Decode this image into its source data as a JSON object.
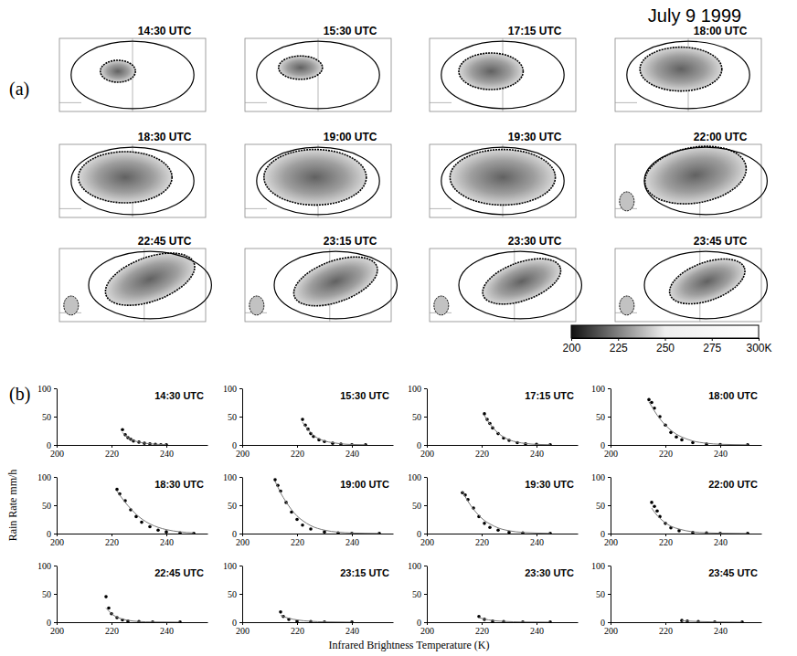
{
  "title": "July 9 1999",
  "panel_a": {
    "label": "(a)",
    "times": [
      "14:30 UTC",
      "15:30 UTC",
      "17:15 UTC",
      "18:00 UTC",
      "18:30 UTC",
      "19:00 UTC",
      "19:30 UTC",
      "22:00 UTC",
      "22:45 UTC",
      "23:15 UTC",
      "23:30 UTC",
      "23:45 UTC"
    ],
    "colorbar": {
      "range": [
        200,
        300
      ],
      "ticks": [
        200,
        225,
        250,
        275,
        {
          "value": 300,
          "label": "300K"
        }
      ]
    }
  },
  "panel_b": {
    "label": "(b)",
    "xlabel": "Infrared Brightness Temperature (K)",
    "ylabel": "Rain Rate mm/h"
  },
  "chart_data": [
    {
      "type": "scatter",
      "title": "14:30 UTC",
      "x": [
        224,
        225,
        226,
        227,
        228,
        230,
        232,
        234,
        236,
        238,
        240
      ],
      "series": [
        {
          "type": "scatter",
          "marker": "dot",
          "color": "#000000",
          "values": [
            27,
            18,
            13,
            10,
            7,
            5,
            3,
            2,
            1,
            0.5,
            0.3
          ]
        },
        {
          "type": "line",
          "line_style": "solid",
          "color": "#777777",
          "values": [
            22,
            17,
            13,
            10,
            8,
            5,
            3.2,
            2,
            1.3,
            0.8,
            0.5
          ]
        }
      ],
      "xlim": [
        200,
        255
      ],
      "ylim": [
        0,
        100
      ],
      "xticks": [
        200,
        220,
        240
      ],
      "yticks": [
        0,
        50,
        100
      ]
    },
    {
      "type": "scatter",
      "title": "15:30 UTC",
      "x": [
        222,
        223,
        224,
        225,
        226,
        228,
        230,
        233,
        236,
        240,
        245
      ],
      "series": [
        {
          "type": "scatter",
          "marker": "dot",
          "color": "#000000",
          "values": [
            45,
            35,
            28,
            20,
            15,
            9,
            6,
            3,
            1.5,
            0.5,
            0.2
          ]
        },
        {
          "type": "line",
          "line_style": "solid",
          "color": "#777777",
          "values": [
            40,
            33,
            27,
            22,
            17,
            11,
            7,
            4,
            2,
            0.8,
            0.3
          ]
        }
      ],
      "xlim": [
        200,
        255
      ],
      "ylim": [
        0,
        100
      ],
      "xticks": [
        200,
        220,
        240
      ],
      "yticks": [
        0,
        50,
        100
      ]
    },
    {
      "type": "scatter",
      "title": "17:15 UTC",
      "x": [
        221,
        222,
        223,
        224,
        226,
        228,
        230,
        233,
        236,
        240,
        245
      ],
      "series": [
        {
          "type": "scatter",
          "marker": "dot",
          "color": "#000000",
          "values": [
            55,
            45,
            38,
            30,
            20,
            12,
            8,
            4,
            2,
            1,
            0.3
          ]
        },
        {
          "type": "line",
          "line_style": "solid",
          "color": "#777777",
          "values": [
            52,
            44,
            37,
            31,
            21,
            14,
            9,
            5,
            2.5,
            1,
            0.4
          ]
        }
      ],
      "xlim": [
        200,
        255
      ],
      "ylim": [
        0,
        100
      ],
      "xticks": [
        200,
        220,
        240
      ],
      "yticks": [
        0,
        50,
        100
      ]
    },
    {
      "type": "scatter",
      "title": "18:00 UTC",
      "x": [
        214,
        215,
        216,
        218,
        220,
        222,
        224,
        226,
        230,
        235,
        240,
        250
      ],
      "series": [
        {
          "type": "scatter",
          "marker": "dot",
          "color": "#000000",
          "values": [
            80,
            75,
            65,
            50,
            35,
            22,
            14,
            9,
            4,
            1.5,
            0.6,
            0.2
          ]
        },
        {
          "type": "line",
          "line_style": "solid",
          "color": "#777777",
          "values": [
            76,
            68,
            60,
            46,
            35,
            26,
            19,
            14,
            7,
            3,
            1.2,
            0.3
          ]
        }
      ],
      "xlim": [
        200,
        255
      ],
      "ylim": [
        0,
        100
      ],
      "xticks": [
        200,
        220,
        240
      ],
      "yticks": [
        0,
        50,
        100
      ]
    },
    {
      "type": "scatter",
      "title": "18:30 UTC",
      "x": [
        222,
        223,
        225,
        227,
        229,
        231,
        234,
        237,
        240,
        245,
        250
      ],
      "series": [
        {
          "type": "scatter",
          "marker": "dot",
          "color": "#000000",
          "values": [
            78,
            70,
            58,
            42,
            30,
            20,
            12,
            6,
            3,
            1,
            0.3
          ]
        },
        {
          "type": "line",
          "line_style": "solid",
          "color": "#777777",
          "values": [
            75,
            68,
            55,
            44,
            34,
            26,
            17,
            11,
            7,
            3,
            1.2
          ]
        }
      ],
      "xlim": [
        200,
        255
      ],
      "ylim": [
        0,
        100
      ],
      "xticks": [
        200,
        220,
        240
      ],
      "yticks": [
        0,
        50,
        100
      ]
    },
    {
      "type": "scatter",
      "title": "19:00 UTC",
      "x": [
        212,
        213,
        214,
        216,
        218,
        220,
        222,
        225,
        230,
        235,
        240,
        250
      ],
      "series": [
        {
          "type": "scatter",
          "marker": "dot",
          "color": "#000000",
          "values": [
            95,
            85,
            75,
            55,
            38,
            25,
            15,
            8,
            3,
            1,
            0.5,
            0.2
          ]
        },
        {
          "type": "line",
          "line_style": "solid",
          "color": "#777777",
          "values": [
            92,
            82,
            72,
            56,
            42,
            31,
            23,
            14,
            6,
            2.5,
            1,
            0.2
          ]
        }
      ],
      "xlim": [
        200,
        255
      ],
      "ylim": [
        0,
        100
      ],
      "xticks": [
        200,
        220,
        240
      ],
      "yticks": [
        0,
        50,
        100
      ]
    },
    {
      "type": "scatter",
      "title": "19:30 UTC",
      "x": [
        213,
        214,
        215,
        217,
        219,
        221,
        223,
        226,
        230,
        235,
        245
      ],
      "series": [
        {
          "type": "scatter",
          "marker": "dot",
          "color": "#000000",
          "values": [
            72,
            68,
            60,
            45,
            30,
            18,
            11,
            6,
            2.5,
            1,
            0.3
          ]
        },
        {
          "type": "line",
          "line_style": "solid",
          "color": "#777777",
          "values": [
            74,
            65,
            57,
            43,
            32,
            23,
            17,
            10,
            5,
            2,
            0.4
          ]
        }
      ],
      "xlim": [
        200,
        255
      ],
      "ylim": [
        0,
        100
      ],
      "xticks": [
        200,
        220,
        240
      ],
      "yticks": [
        0,
        50,
        100
      ]
    },
    {
      "type": "scatter",
      "title": "22:00 UTC",
      "x": [
        215,
        216,
        217,
        218,
        220,
        222,
        225,
        230,
        235,
        240,
        250
      ],
      "series": [
        {
          "type": "scatter",
          "marker": "dot",
          "color": "#000000",
          "values": [
            55,
            48,
            40,
            30,
            18,
            10,
            5,
            2,
            1,
            0.4,
            0.2
          ]
        },
        {
          "type": "line",
          "line_style": "solid",
          "color": "#777777",
          "values": [
            45,
            38,
            32,
            27,
            19,
            13,
            8,
            3,
            1.3,
            0.6,
            0.1
          ]
        }
      ],
      "xlim": [
        200,
        255
      ],
      "ylim": [
        0,
        100
      ],
      "xticks": [
        200,
        220,
        240
      ],
      "yticks": [
        0,
        50,
        100
      ]
    },
    {
      "type": "scatter",
      "title": "22:45 UTC",
      "x": [
        218,
        219,
        220,
        222,
        224,
        226,
        230,
        235,
        245
      ],
      "series": [
        {
          "type": "scatter",
          "marker": "dot",
          "color": "#000000",
          "values": [
            45,
            25,
            15,
            8,
            4,
            2,
            1,
            0.5,
            0.2
          ]
        },
        {
          "type": "line",
          "line_style": "solid",
          "color": "#777777",
          "values": [
            25,
            20,
            15,
            9,
            5.5,
            3.3,
            1.2,
            0.4,
            0.1
          ]
        }
      ],
      "xlim": [
        200,
        255
      ],
      "ylim": [
        0,
        100
      ],
      "xticks": [
        200,
        220,
        240
      ],
      "yticks": [
        0,
        50,
        100
      ]
    },
    {
      "type": "scatter",
      "title": "23:15 UTC",
      "x": [
        214,
        215,
        217,
        220,
        225,
        230,
        240
      ],
      "series": [
        {
          "type": "scatter",
          "marker": "dot",
          "color": "#000000",
          "values": [
            18,
            10,
            5,
            2,
            1,
            0.5,
            0.2
          ]
        },
        {
          "type": "line",
          "line_style": "solid",
          "color": "#777777",
          "values": [
            12,
            10,
            7,
            4,
            1.6,
            0.6,
            0.1
          ]
        }
      ],
      "xlim": [
        200,
        255
      ],
      "ylim": [
        0,
        100
      ],
      "xticks": [
        200,
        220,
        240
      ],
      "yticks": [
        0,
        50,
        100
      ]
    },
    {
      "type": "scatter",
      "title": "23:30 UTC",
      "x": [
        219,
        221,
        224,
        228,
        235,
        245
      ],
      "series": [
        {
          "type": "scatter",
          "marker": "dot",
          "color": "#000000",
          "values": [
            10,
            5,
            2,
            1,
            0.4,
            0.2
          ]
        },
        {
          "type": "line",
          "line_style": "solid",
          "color": "#777777",
          "values": [
            8,
            5.5,
            3,
            1.5,
            0.4,
            0.1
          ]
        }
      ],
      "xlim": [
        200,
        255
      ],
      "ylim": [
        0,
        100
      ],
      "xticks": [
        200,
        220,
        240
      ],
      "yticks": [
        0,
        50,
        100
      ]
    },
    {
      "type": "scatter",
      "title": "23:45 UTC",
      "x": [
        226,
        228,
        232,
        238,
        248
      ],
      "series": [
        {
          "type": "scatter",
          "marker": "dot",
          "color": "#000000",
          "values": [
            3,
            2,
            1,
            0.5,
            0.2
          ]
        },
        {
          "type": "line",
          "line_style": "solid",
          "color": "#777777",
          "values": [
            2.5,
            2,
            1.2,
            0.5,
            0.1
          ]
        }
      ],
      "xlim": [
        200,
        255
      ],
      "ylim": [
        0,
        100
      ],
      "xticks": [
        200,
        220,
        240
      ],
      "yticks": [
        0,
        50,
        100
      ]
    }
  ]
}
